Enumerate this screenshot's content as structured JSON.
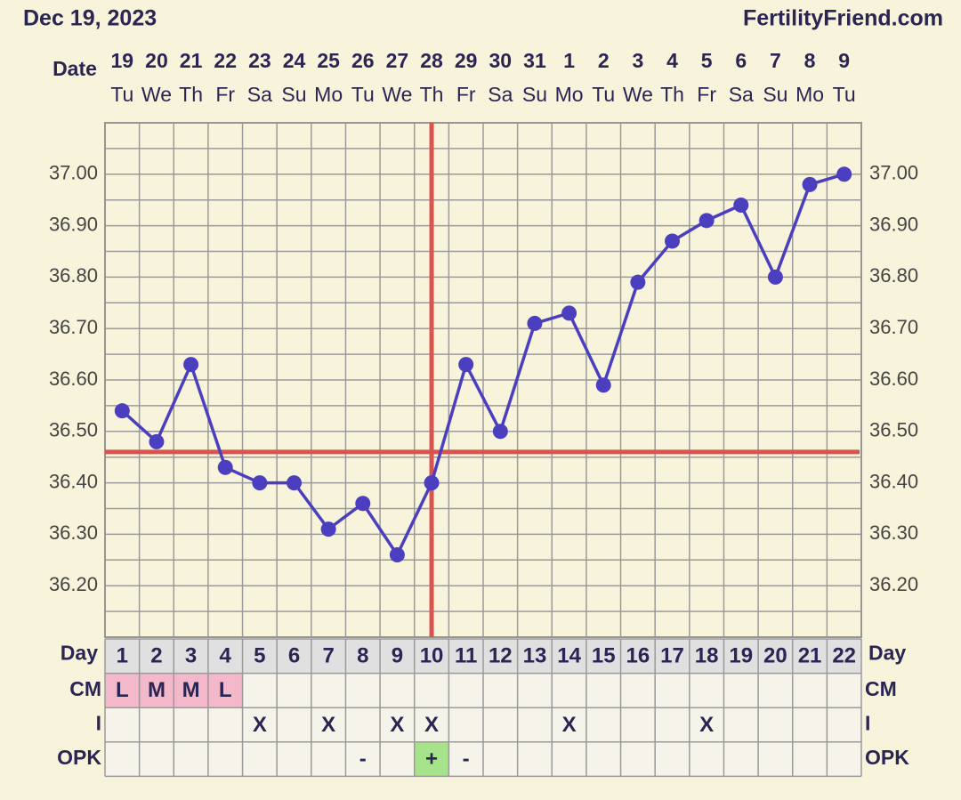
{
  "chart_data": {
    "type": "line",
    "title": "Dec 19, 2023",
    "site": "FertilityFriend.com",
    "date_label": "Date",
    "dates": [
      19,
      20,
      21,
      22,
      23,
      24,
      25,
      26,
      27,
      28,
      29,
      30,
      31,
      1,
      2,
      3,
      4,
      5,
      6,
      7,
      8,
      9
    ],
    "weekdays": [
      "Tu",
      "We",
      "Th",
      "Fr",
      "Sa",
      "Su",
      "Mo",
      "Tu",
      "We",
      "Th",
      "Fr",
      "Sa",
      "Su",
      "Mo",
      "Tu",
      "We",
      "Th",
      "Fr",
      "Sa",
      "Su",
      "Mo",
      "Tu"
    ],
    "day_label": "Day",
    "days": [
      1,
      2,
      3,
      4,
      5,
      6,
      7,
      8,
      9,
      10,
      11,
      12,
      13,
      14,
      15,
      16,
      17,
      18,
      19,
      20,
      21,
      22
    ],
    "values": [
      36.54,
      36.48,
      36.63,
      36.43,
      36.4,
      36.4,
      36.31,
      36.36,
      36.26,
      36.4,
      36.63,
      36.5,
      36.71,
      36.73,
      36.59,
      36.79,
      36.87,
      36.91,
      36.94,
      36.8,
      36.98,
      37.0
    ],
    "color": "#4b3fc0",
    "coverline": 36.46,
    "ovulation_day": 10,
    "marker_line_color": "#d9534f",
    "ylim": [
      36.1,
      37.1
    ],
    "yticks": [
      {
        "value": 36.2,
        "label": "36.20"
      },
      {
        "value": 36.3,
        "label": "36.30"
      },
      {
        "value": 36.4,
        "label": "36.40"
      },
      {
        "value": 36.5,
        "label": "36.50"
      },
      {
        "value": 36.6,
        "label": "36.60"
      },
      {
        "value": 36.7,
        "label": "36.70"
      },
      {
        "value": 36.8,
        "label": "36.80"
      },
      {
        "value": 36.9,
        "label": "36.90"
      },
      {
        "value": 37.0,
        "label": "37.00"
      }
    ],
    "ygrid": [
      36.1,
      36.15,
      36.2,
      36.25,
      36.3,
      36.35,
      36.4,
      36.45,
      36.5,
      36.55,
      36.6,
      36.65,
      36.7,
      36.75,
      36.8,
      36.85,
      36.9,
      36.95,
      37.0,
      37.05,
      37.1
    ],
    "grid": true,
    "rows": [
      {
        "label": "CM",
        "values": [
          "L",
          "M",
          "M",
          "L",
          null,
          null,
          null,
          null,
          null,
          null,
          null,
          null,
          null,
          null,
          null,
          null,
          null,
          null,
          null,
          null,
          null,
          null
        ],
        "cell_colors": [
          "#f4b8cb",
          "#f4b8cb",
          "#f4b8cb",
          "#f4b8cb",
          null,
          null,
          null,
          null,
          null,
          null,
          null,
          null,
          null,
          null,
          null,
          null,
          null,
          null,
          null,
          null,
          null,
          null
        ]
      },
      {
        "label": "I",
        "values": [
          null,
          null,
          null,
          null,
          "X",
          null,
          "X",
          null,
          "X",
          "X",
          null,
          null,
          null,
          "X",
          null,
          null,
          null,
          "X",
          null,
          null,
          null,
          null
        ],
        "cell_colors": [
          null,
          null,
          null,
          null,
          null,
          null,
          null,
          null,
          null,
          null,
          null,
          null,
          null,
          null,
          null,
          null,
          null,
          null,
          null,
          null,
          null,
          null
        ]
      },
      {
        "label": "OPK",
        "values": [
          null,
          null,
          null,
          null,
          null,
          null,
          null,
          "-",
          null,
          "+",
          "-",
          null,
          null,
          null,
          null,
          null,
          null,
          null,
          null,
          null,
          null,
          null
        ],
        "cell_colors": [
          null,
          null,
          null,
          null,
          null,
          null,
          null,
          null,
          null,
          "#a6e38a",
          null,
          null,
          null,
          null,
          null,
          null,
          null,
          null,
          null,
          null,
          null,
          null
        ]
      }
    ]
  }
}
